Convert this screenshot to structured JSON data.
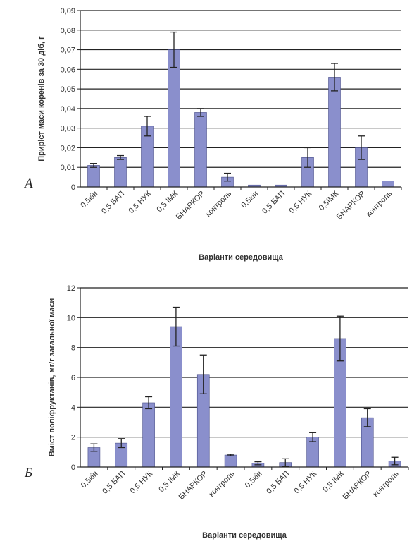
{
  "chart_data": [
    {
      "type": "bar",
      "panel_label": "А",
      "title": "",
      "ylabel": "Приріст маси коренів за 30 діб, г",
      "xlabel": "Варіанти середовища",
      "ylim": [
        0,
        0.09
      ],
      "yticks": [
        "0",
        "0,01",
        "0,02",
        "0,03",
        "0,04",
        "0,05",
        "0,06",
        "0,07",
        "0,08",
        "0,09"
      ],
      "ytick_values": [
        0,
        0.01,
        0.02,
        0.03,
        0.04,
        0.05,
        0.06,
        0.07,
        0.08,
        0.09
      ],
      "categories": [
        "0,5кін",
        "0,5 БАП",
        "0,5 НУК",
        "0,5 ІМК",
        "БНАРКОР",
        "контроль",
        "0,5кін",
        "0,5 БАП",
        "0,5 НУК",
        "0,5ІМК",
        "БНАРКОР",
        "контроль"
      ],
      "values": [
        0.011,
        0.015,
        0.031,
        0.07,
        0.038,
        0.005,
        0.001,
        0.001,
        0.015,
        0.056,
        0.02,
        0.003
      ],
      "errors": [
        0.001,
        0.001,
        0.005,
        0.009,
        0.002,
        0.002,
        0.0,
        0.0,
        0.005,
        0.007,
        0.006,
        0.0
      ],
      "grid": "horizontal",
      "bar_color": "#8a8fcc"
    },
    {
      "type": "bar",
      "panel_label": "Б",
      "title": "",
      "ylabel": "Вміст поліфруктанів, мг/г загальної маси",
      "xlabel": "Варіанти середовища",
      "ylim": [
        0,
        12
      ],
      "yticks": [
        "0",
        "2",
        "4",
        "6",
        "8",
        "10",
        "12"
      ],
      "ytick_values": [
        0,
        2,
        4,
        6,
        8,
        10,
        12
      ],
      "categories": [
        "0,5кін",
        "0,5 БАП",
        "0,5 НУК",
        "0,5 ІМК",
        "БНАРКОР",
        "контроль",
        "0,5кін",
        "0,5 БАП",
        "0,5 НУК",
        "0,5 ІМК",
        "БНАРКОР",
        "контроль"
      ],
      "values": [
        1.3,
        1.6,
        4.3,
        9.4,
        6.2,
        0.8,
        0.25,
        0.3,
        2.0,
        8.6,
        3.3,
        0.4
      ],
      "errors": [
        0.25,
        0.3,
        0.4,
        1.3,
        1.3,
        0.05,
        0.1,
        0.25,
        0.3,
        1.5,
        0.6,
        0.25
      ],
      "grid": "horizontal",
      "bar_color": "#8a8fcc"
    }
  ]
}
